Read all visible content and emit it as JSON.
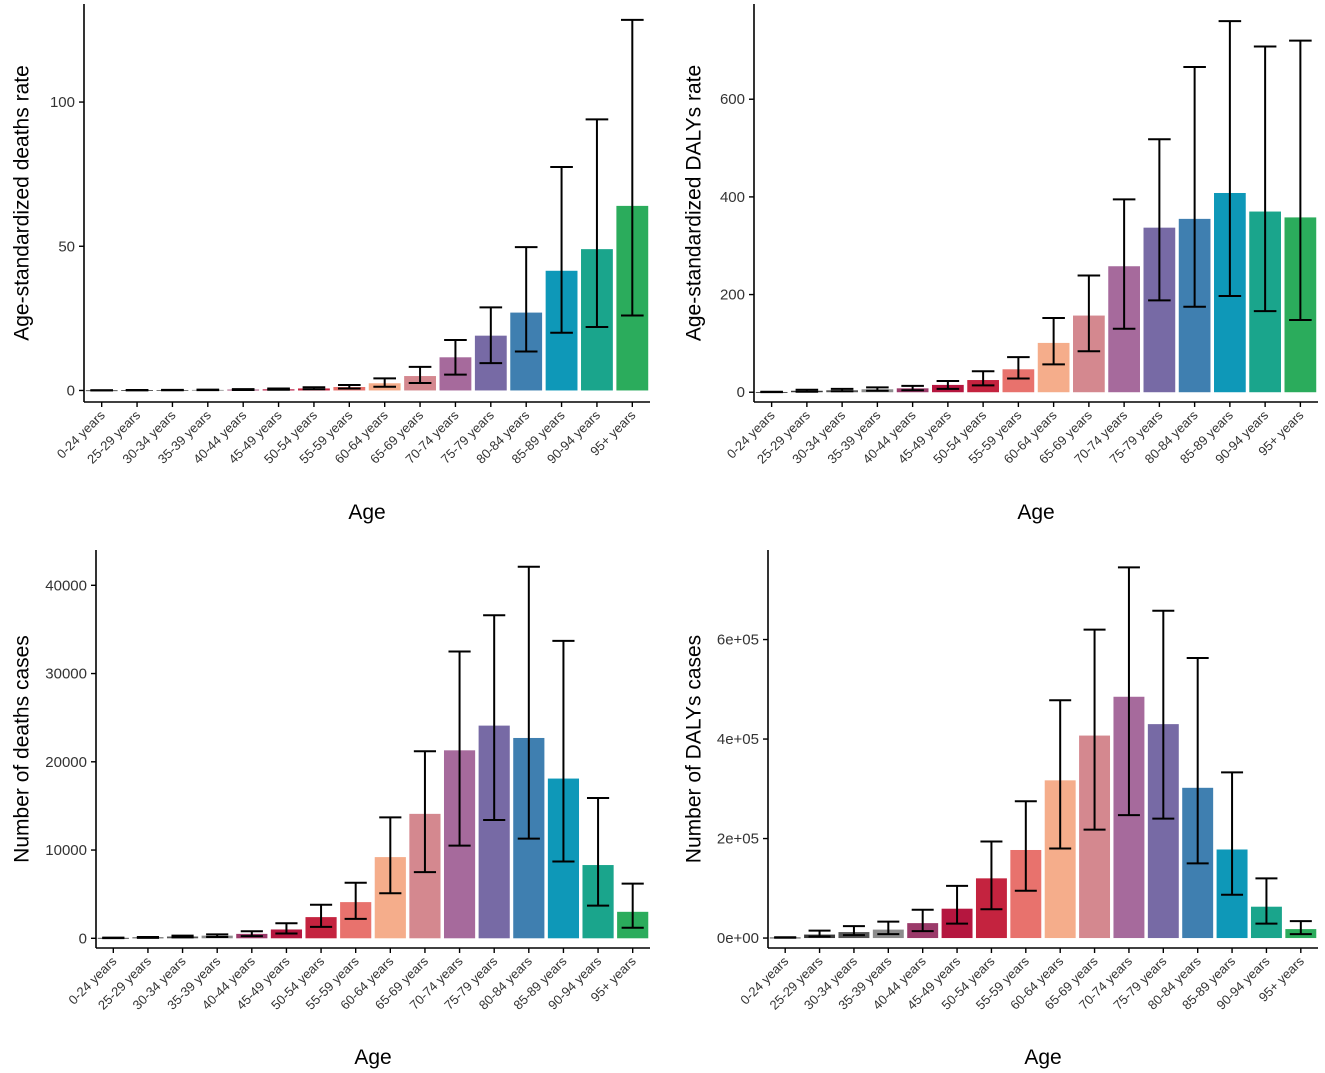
{
  "colors": [
    "#2a2a2a",
    "#3a3a3a",
    "#555555",
    "#8c8c8c",
    "#9b3a6a",
    "#b5163f",
    "#c4233f",
    "#e8726d",
    "#f5ad8b",
    "#d4888f",
    "#a66a9c",
    "#776aa5",
    "#3f7fb0",
    "#0e98b8",
    "#1aa58c",
    "#2bac5c"
  ],
  "chart_data": [
    {
      "type": "bar",
      "ylabel": "Age-standardized deaths rate",
      "xlabel": "Age",
      "categories": [
        "0-24 years",
        "25-29 years",
        "30-34 years",
        "35-39 years",
        "40-44 years",
        "45-49 years",
        "50-54 years",
        "55-59 years",
        "60-64 years",
        "65-69 years",
        "70-74 years",
        "75-79 years",
        "80-84 years",
        "85-89 years",
        "90-94 years",
        "95+ years"
      ],
      "values": [
        0.05,
        0.1,
        0.15,
        0.2,
        0.3,
        0.4,
        0.7,
        1.2,
        2.5,
        5.0,
        11.5,
        19,
        27,
        41.5,
        49,
        64
      ],
      "lower": [
        0.02,
        0.05,
        0.08,
        0.1,
        0.15,
        0.25,
        0.4,
        0.7,
        1.3,
        2.6,
        5.5,
        9.5,
        13.5,
        20,
        22,
        26
      ],
      "upper": [
        0.08,
        0.15,
        0.22,
        0.3,
        0.45,
        0.7,
        1.1,
        1.9,
        4.2,
        8.2,
        17.5,
        28.8,
        49.7,
        77.5,
        94,
        128.5
      ],
      "ylim": [
        -4,
        134
      ],
      "yticks": [
        0,
        50,
        100
      ],
      "ytick_labels": [
        "0",
        "50",
        "100"
      ]
    },
    {
      "type": "bar",
      "ylabel": "Age-standardized DALYs rate",
      "xlabel": "Age",
      "categories": [
        "0-24 years",
        "25-29 years",
        "30-34 years",
        "35-39 years",
        "40-44 years",
        "45-49 years",
        "50-54 years",
        "55-59 years",
        "60-64 years",
        "65-69 years",
        "70-74 years",
        "75-79 years",
        "80-84 years",
        "85-89 years",
        "90-94 years",
        "95+ years"
      ],
      "values": [
        0.5,
        3,
        4,
        6,
        8,
        15,
        25,
        47,
        101,
        157,
        258,
        337,
        355,
        408,
        370,
        358
      ],
      "lower": [
        0.2,
        1,
        2,
        3,
        4,
        7,
        14,
        28,
        57,
        84,
        130,
        188,
        175,
        197,
        166,
        148
      ],
      "upper": [
        1,
        5,
        7,
        10,
        13,
        23,
        43,
        72,
        152,
        239,
        395,
        518,
        666,
        760,
        708,
        720
      ],
      "ylim": [
        -20,
        795
      ],
      "yticks": [
        0,
        200,
        400,
        600
      ],
      "ytick_labels": [
        "0",
        "200",
        "400",
        "600"
      ]
    },
    {
      "type": "bar",
      "ylabel": "Number of deaths cases",
      "xlabel": "Age",
      "categories": [
        "0-24 years",
        "25-29 years",
        "30-34 years",
        "35-39 years",
        "40-44 years",
        "45-49 years",
        "50-54 years",
        "55-59 years",
        "60-64 years",
        "65-69 years",
        "70-74 years",
        "75-79 years",
        "80-84 years",
        "85-89 years",
        "90-94 years",
        "95+ years"
      ],
      "values": [
        50,
        100,
        200,
        300,
        500,
        1000,
        2400,
        4100,
        9200,
        14100,
        21300,
        24100,
        22700,
        18100,
        8300,
        3000
      ],
      "lower": [
        20,
        50,
        100,
        150,
        250,
        550,
        1300,
        2200,
        5100,
        7500,
        10500,
        13400,
        11300,
        8700,
        3700,
        1200
      ],
      "upper": [
        80,
        150,
        300,
        450,
        800,
        1700,
        3800,
        6300,
        13700,
        21200,
        32500,
        36600,
        42100,
        33700,
        15900,
        6200
      ],
      "ylim": [
        -1100,
        44000
      ],
      "yticks": [
        0,
        10000,
        20000,
        30000,
        40000
      ],
      "ytick_labels": [
        "0",
        "10000",
        "20000",
        "30000",
        "40000"
      ]
    },
    {
      "type": "bar",
      "ylabel": "Number of DALYs cases",
      "xlabel": "Age",
      "categories": [
        "0-24 years",
        "25-29 years",
        "30-34 years",
        "35-39 years",
        "40-44 years",
        "45-49 years",
        "50-54 years",
        "55-59 years",
        "60-64 years",
        "65-69 years",
        "70-74 years",
        "75-79 years",
        "80-84 years",
        "85-89 years",
        "90-94 years",
        "95+ years"
      ],
      "values": [
        1000,
        7000,
        12000,
        17000,
        30000,
        59000,
        120000,
        177000,
        317000,
        407000,
        485000,
        430000,
        302000,
        178000,
        63000,
        18000
      ],
      "lower": [
        500,
        3000,
        6000,
        8000,
        14000,
        29000,
        58000,
        95000,
        180000,
        218000,
        247000,
        240000,
        150000,
        87000,
        29000,
        8000
      ],
      "upper": [
        1500,
        15000,
        24000,
        33000,
        57000,
        105000,
        194000,
        275000,
        478000,
        620000,
        745000,
        658000,
        563000,
        333000,
        120000,
        34000
      ],
      "ylim": [
        -20000,
        780000
      ],
      "yticks": [
        0,
        200000,
        400000,
        600000
      ],
      "ytick_labels": [
        "0e+00",
        "2e+05",
        "4e+05",
        "6e+05"
      ]
    }
  ]
}
